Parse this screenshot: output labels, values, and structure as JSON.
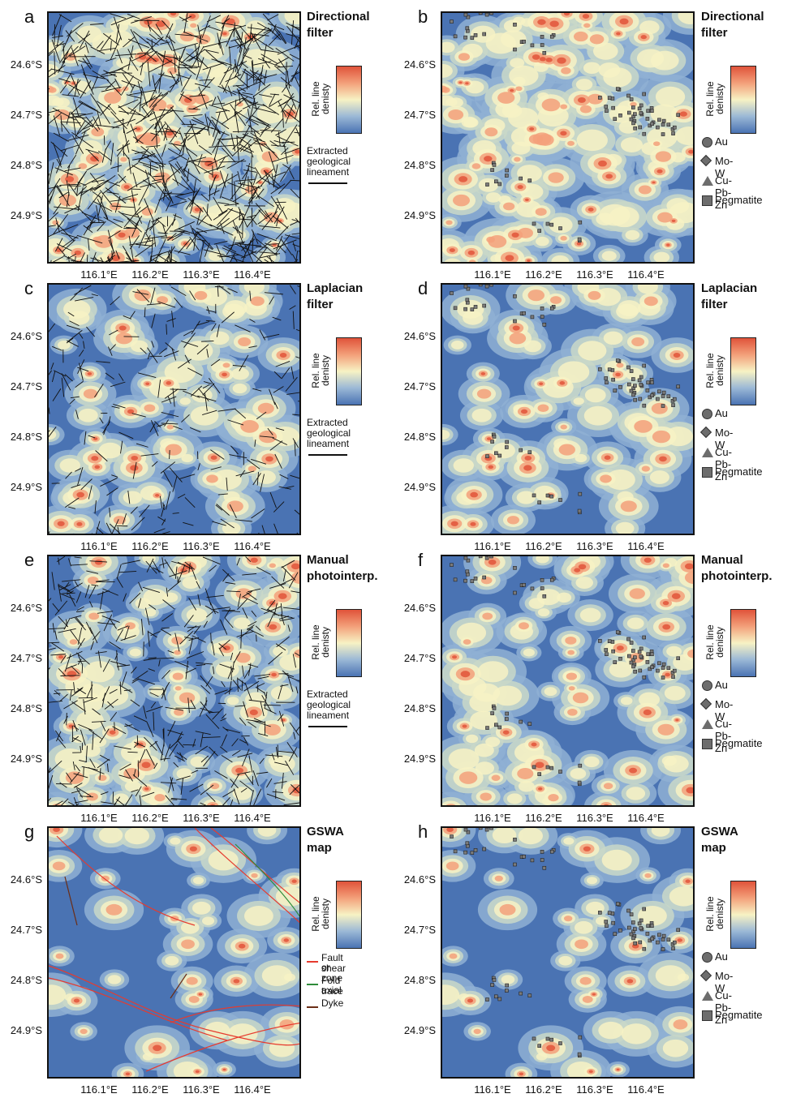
{
  "panels": [
    {
      "letter": "a",
      "title1": "Directional",
      "title2": "filter",
      "colorbar": "Rel. line\ndenisty",
      "legend": "lineament"
    },
    {
      "letter": "b",
      "title1": "Directional",
      "title2": "filter",
      "colorbar": "Rel. line\ndenisty",
      "legend": "deposits"
    },
    {
      "letter": "c",
      "title1": "Laplacian",
      "title2": "filter",
      "colorbar": "Rel. line\ndenisty",
      "legend": "lineament"
    },
    {
      "letter": "d",
      "title1": "Laplacian",
      "title2": "filter",
      "colorbar": "Rel. line\ndenisty",
      "legend": "deposits"
    },
    {
      "letter": "e",
      "title1": "Manual",
      "title2": "photointerp.",
      "colorbar": "Rel. line\ndenisty",
      "legend": "lineament"
    },
    {
      "letter": "f",
      "title1": "Manual",
      "title2": "photointerp.",
      "colorbar": "Rel. line\ndenisty",
      "legend": "deposits"
    },
    {
      "letter": "g",
      "title1": "GSWA",
      "title2": "map",
      "colorbar": "Rel. line\ndenisty",
      "legend": "gswa"
    },
    {
      "letter": "h",
      "title1": "GSWA",
      "title2": "map",
      "colorbar": "Rel. line\ndenisty",
      "legend": "deposits"
    }
  ],
  "axes": {
    "y_ticks": [
      "24.6°S",
      "24.7°S",
      "24.8°S",
      "24.9°S"
    ],
    "x_ticks": [
      "116.1°E",
      "116.2°E",
      "116.3°E",
      "116.4°E"
    ]
  },
  "legend_lineament": {
    "line1": "Extracted",
    "line2": "geological",
    "line3": "lineament"
  },
  "legend_deposits": [
    "Au",
    "Mo-W",
    "Cu-Pb-Zn",
    "Pegmatite"
  ],
  "legend_gswa": [
    {
      "l1": "Fault or",
      "l2": "shear zone",
      "color": "#e63b2e"
    },
    {
      "l1": "Fold axial",
      "l2": "trace",
      "color": "#2e8b3a"
    },
    {
      "l1": "Dyke",
      "l2": "",
      "color": "#6b2e16"
    }
  ],
  "colors": {
    "high": "#e0533a",
    "mid": "#f7f2c4",
    "low": "#4a73b3",
    "fault": "#e63b2e",
    "fold": "#2e8b3a",
    "dyke": "#6b2e16"
  }
}
